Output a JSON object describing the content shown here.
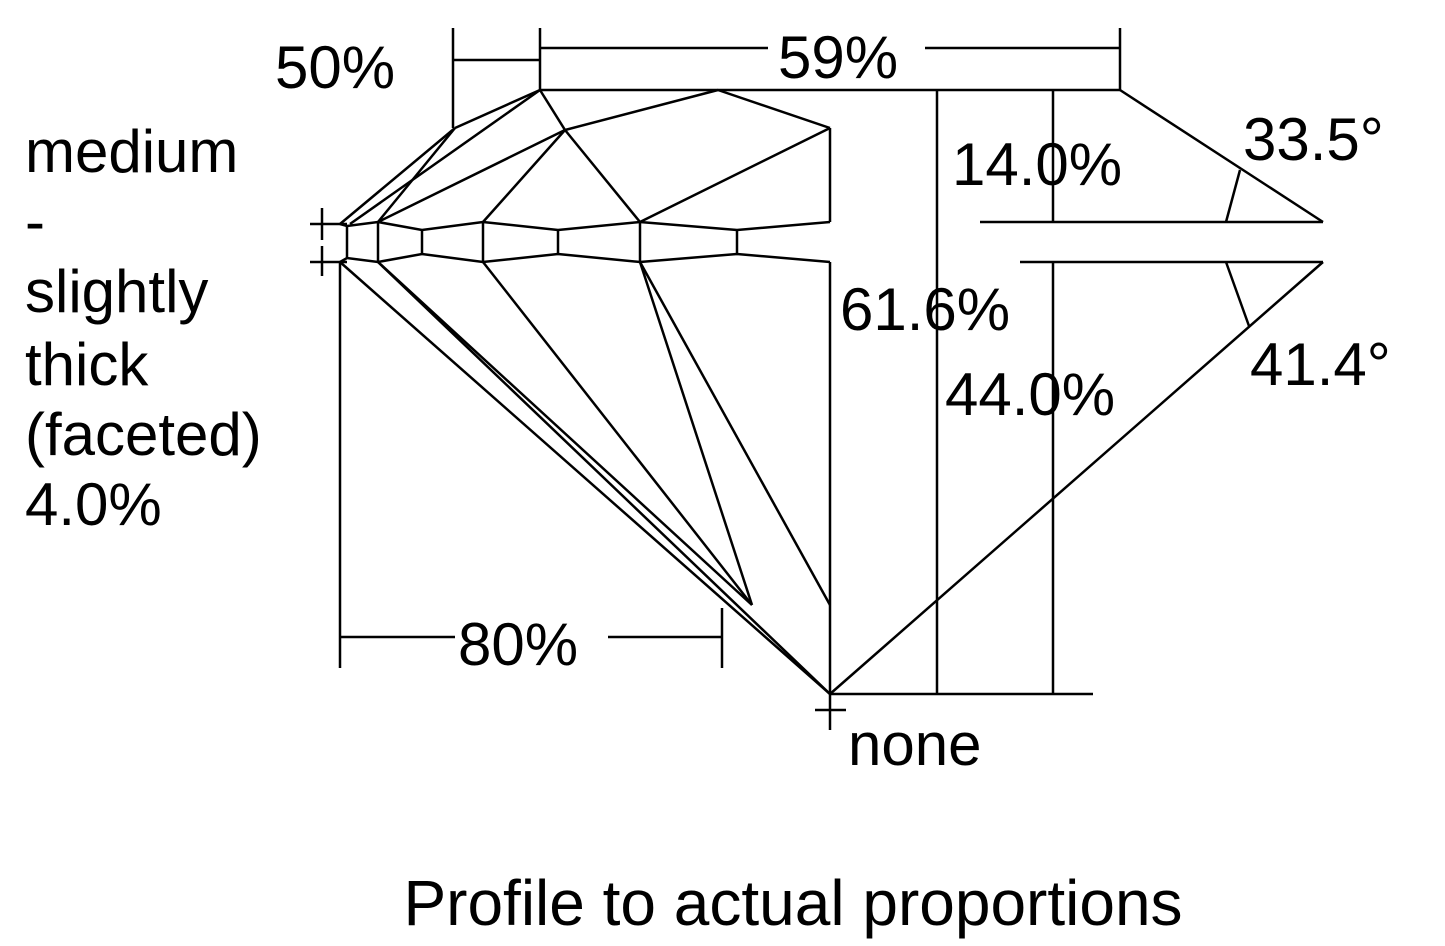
{
  "labels": {
    "star": "50%",
    "table": "59%",
    "crown_height": "14.0%",
    "crown_angle": "33.5°",
    "total_depth": "61.6%",
    "pavilion_depth": "44.0%",
    "pavilion_angle": "41.4°",
    "lower_half": "80%",
    "culet": "none"
  },
  "girdle": [
    "medium",
    "-",
    "slightly",
    "thick",
    "(faceted)",
    "4.0%"
  ],
  "caption": "Profile to actual proportions"
}
